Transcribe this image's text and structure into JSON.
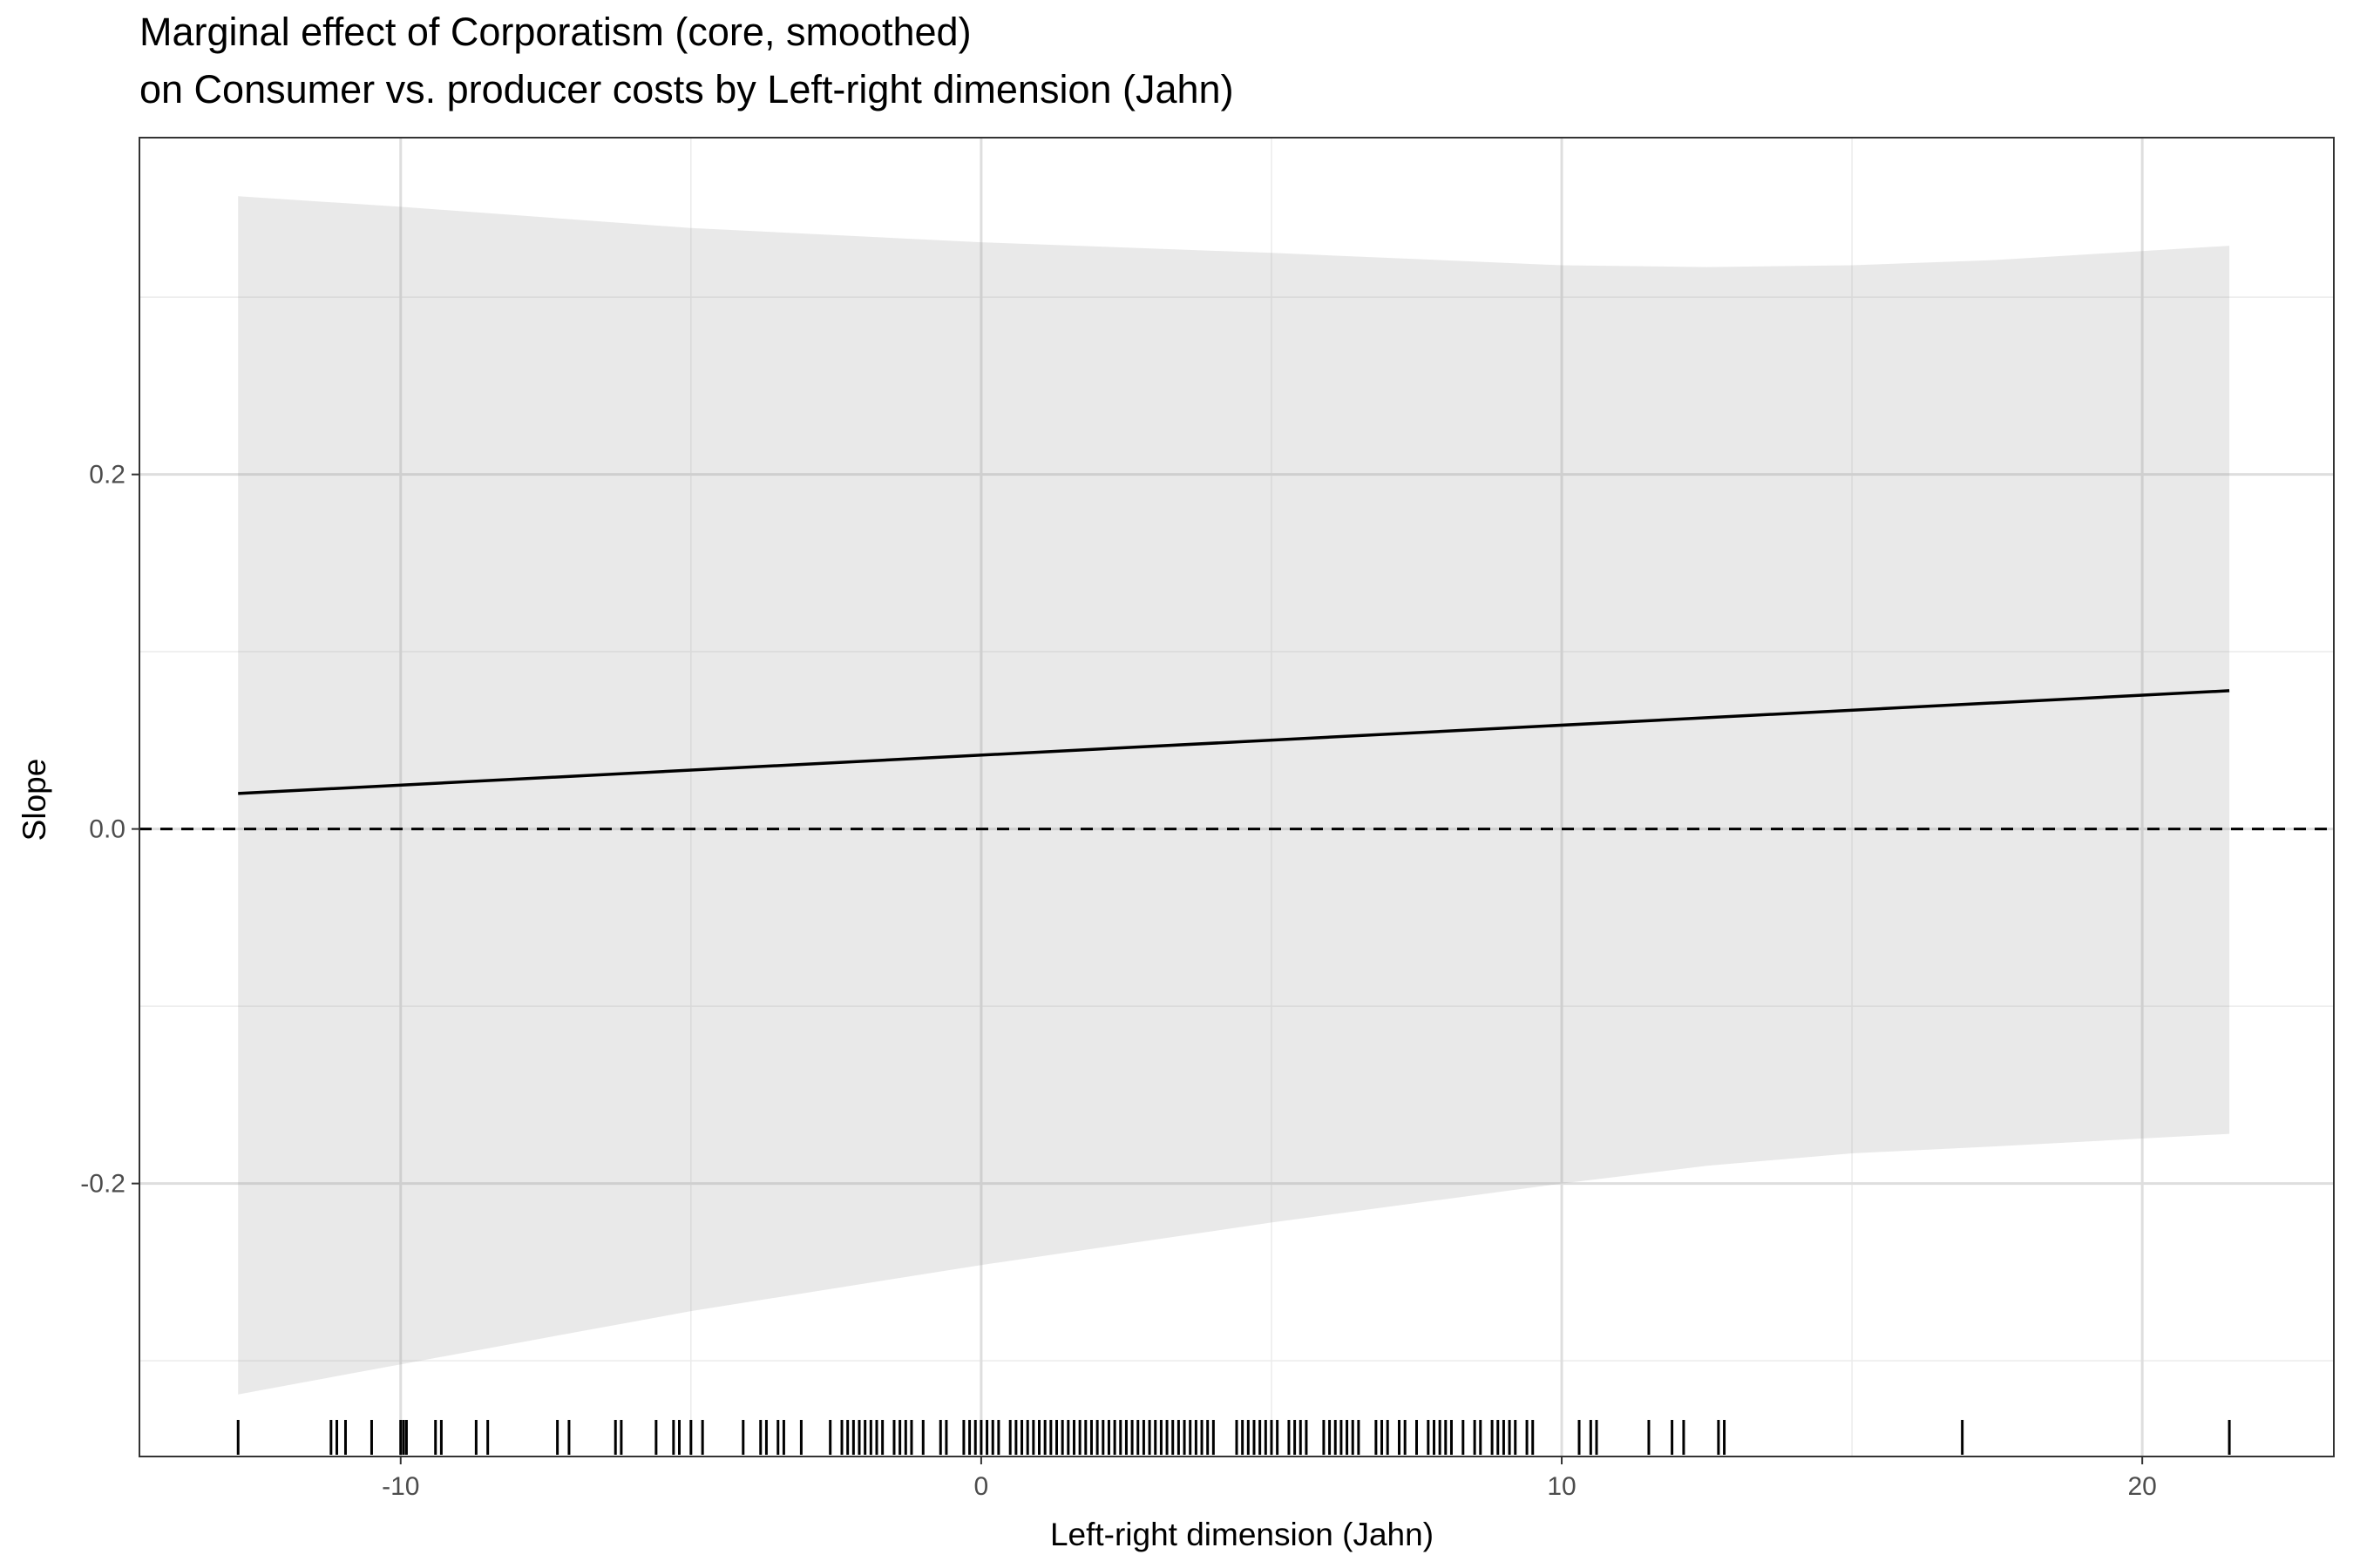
{
  "chart_data": {
    "type": "line",
    "title": "Marginal effect of Corporatism (core, smoothed)",
    "subtitle": "on Consumer vs. producer costs by Left-right dimension (Jahn)",
    "xlabel": "Left-right dimension (Jahn)",
    "ylabel": "Slope",
    "xlim": [
      -14.5,
      23.3
    ],
    "ylim": [
      -0.354,
      0.39
    ],
    "x_ticks": [
      -10,
      0,
      10,
      20
    ],
    "x_tick_labels": [
      "-10",
      "0",
      "10",
      "20"
    ],
    "y_ticks": [
      -0.2,
      0.0,
      0.2
    ],
    "y_tick_labels": [
      "-0.2",
      "0.0",
      "0.2"
    ],
    "x_minor_gridlines": [
      -5,
      5,
      15
    ],
    "y_minor_gridlines": [
      -0.3,
      -0.1,
      0.1,
      0.3
    ],
    "grid": true,
    "reference_line": {
      "y": 0,
      "style": "dashed"
    },
    "series": [
      {
        "x": [
          -12.8,
          21.5
        ],
        "y": [
          0.02,
          0.078
        ]
      }
    ],
    "confidence_band": {
      "x": [
        -12.8,
        -10,
        -5,
        0,
        5,
        10,
        12.5,
        15,
        17.5,
        21.5
      ],
      "upper": [
        0.357,
        0.351,
        0.339,
        0.331,
        0.325,
        0.318,
        0.317,
        0.318,
        0.321,
        0.329
      ],
      "lower": [
        -0.319,
        -0.302,
        -0.272,
        -0.246,
        -0.222,
        -0.2,
        -0.19,
        -0.183,
        -0.179,
        -0.172
      ]
    },
    "rug_x": [
      -12.8,
      -11.2,
      -11.1,
      -10.95,
      -10.5,
      -10,
      -9.95,
      -9.9,
      -9.4,
      -9.3,
      -8.7,
      -8.5,
      -7.3,
      -7.1,
      -6.3,
      -6.2,
      -5.6,
      -5.3,
      -5.2,
      -5.0,
      -4.8,
      -4.1,
      -3.8,
      -3.7,
      -3.5,
      -3.4,
      -3.1,
      -2.6,
      -2.4,
      -2.3,
      -2.2,
      -2.1,
      -2.0,
      -1.9,
      -1.8,
      -1.7,
      -1.5,
      -1.4,
      -1.3,
      -1.2,
      -1.0,
      -0.7,
      -0.6,
      -0.3,
      -0.2,
      -0.1,
      0.0,
      0.1,
      0.2,
      0.3,
      0.5,
      0.6,
      0.7,
      0.8,
      0.9,
      1.0,
      1.1,
      1.2,
      1.3,
      1.4,
      1.5,
      1.6,
      1.7,
      1.8,
      1.9,
      2.0,
      2.1,
      2.2,
      2.3,
      2.4,
      2.5,
      2.6,
      2.7,
      2.8,
      2.9,
      3.0,
      3.1,
      3.2,
      3.3,
      3.4,
      3.5,
      3.6,
      3.7,
      3.8,
      3.9,
      4.0,
      4.4,
      4.5,
      4.6,
      4.7,
      4.8,
      4.9,
      5.0,
      5.1,
      5.3,
      5.4,
      5.5,
      5.6,
      5.9,
      6.0,
      6.1,
      6.2,
      6.3,
      6.4,
      6.5,
      6.8,
      6.9,
      7.0,
      7.2,
      7.3,
      7.5,
      7.7,
      7.8,
      7.9,
      8.0,
      8.1,
      8.3,
      8.5,
      8.6,
      8.8,
      8.9,
      9.0,
      9.1,
      9.2,
      9.4,
      9.5,
      10.3,
      10.5,
      10.6,
      11.5,
      11.9,
      12.1,
      12.7,
      12.8,
      16.9,
      21.5
    ]
  }
}
